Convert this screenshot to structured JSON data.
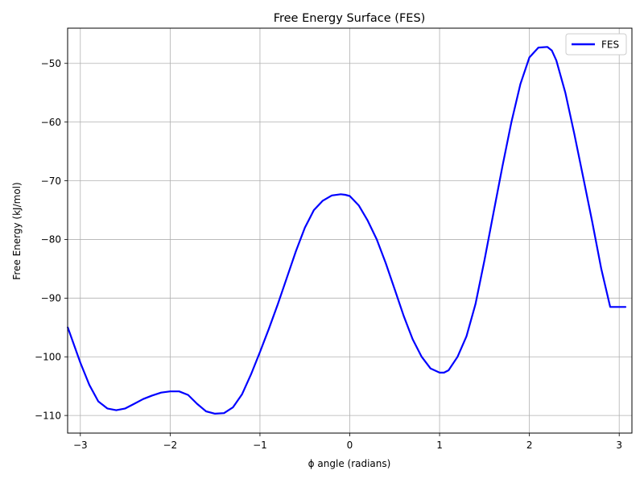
{
  "chart_data": {
    "type": "line",
    "title": "Free Energy Surface (FES)",
    "xlabel": "ϕ angle (radians)",
    "ylabel": "Free Energy (kJ/mol)",
    "xlim": [
      -3.14159,
      3.14159
    ],
    "ylim": [
      -113,
      -44
    ],
    "xticks": [
      -3,
      -2,
      -1,
      0,
      1,
      2,
      3
    ],
    "xtick_labels": [
      "−3",
      "−2",
      "−1",
      "0",
      "1",
      "2",
      "3"
    ],
    "yticks": [
      -110,
      -100,
      -90,
      -80,
      -70,
      -60,
      -50
    ],
    "ytick_labels": [
      "−110",
      "−100",
      "−90",
      "−80",
      "−70",
      "−60",
      "−50"
    ],
    "grid": true,
    "legend_position": "top-right",
    "series": [
      {
        "name": "FES",
        "color": "#0000ff",
        "x": [
          -3.14,
          -3.0,
          -2.9,
          -2.8,
          -2.7,
          -2.6,
          -2.5,
          -2.4,
          -2.3,
          -2.2,
          -2.1,
          -2.0,
          -1.9,
          -1.8,
          -1.7,
          -1.6,
          -1.5,
          -1.4,
          -1.3,
          -1.2,
          -1.1,
          -1.0,
          -0.9,
          -0.8,
          -0.7,
          -0.6,
          -0.5,
          -0.4,
          -0.3,
          -0.2,
          -0.1,
          -0.05,
          0.0,
          0.1,
          0.2,
          0.3,
          0.4,
          0.5,
          0.6,
          0.7,
          0.8,
          0.9,
          1.0,
          1.05,
          1.1,
          1.2,
          1.3,
          1.4,
          1.5,
          1.6,
          1.7,
          1.8,
          1.9,
          2.0,
          2.1,
          2.2,
          2.25,
          2.3,
          2.4,
          2.5,
          2.6,
          2.7,
          2.8,
          2.9,
          3.0,
          3.07
        ],
        "y": [
          -95,
          -101,
          -104.8,
          -107.6,
          -108.8,
          -109.1,
          -108.8,
          -108.0,
          -107.2,
          -106.6,
          -106.1,
          -105.9,
          -105.9,
          -106.5,
          -108.0,
          -109.3,
          -109.7,
          -109.6,
          -108.6,
          -106.4,
          -103.0,
          -99.2,
          -95.2,
          -91.0,
          -86.5,
          -82.0,
          -78.0,
          -75.0,
          -73.4,
          -72.5,
          -72.3,
          -72.4,
          -72.6,
          -74.2,
          -76.8,
          -80.0,
          -84.0,
          -88.5,
          -93.0,
          -97.0,
          -100.0,
          -102.0,
          -102.7,
          -102.7,
          -102.3,
          -100.0,
          -96.5,
          -91.0,
          -83.5,
          -75.5,
          -67.5,
          -60.0,
          -53.5,
          -49.0,
          -47.3,
          -47.2,
          -47.8,
          -49.5,
          -55.0,
          -62.0,
          -69.5,
          -77.0,
          -85.0,
          -91.5,
          -91.5,
          -91.5
        ]
      }
    ]
  }
}
